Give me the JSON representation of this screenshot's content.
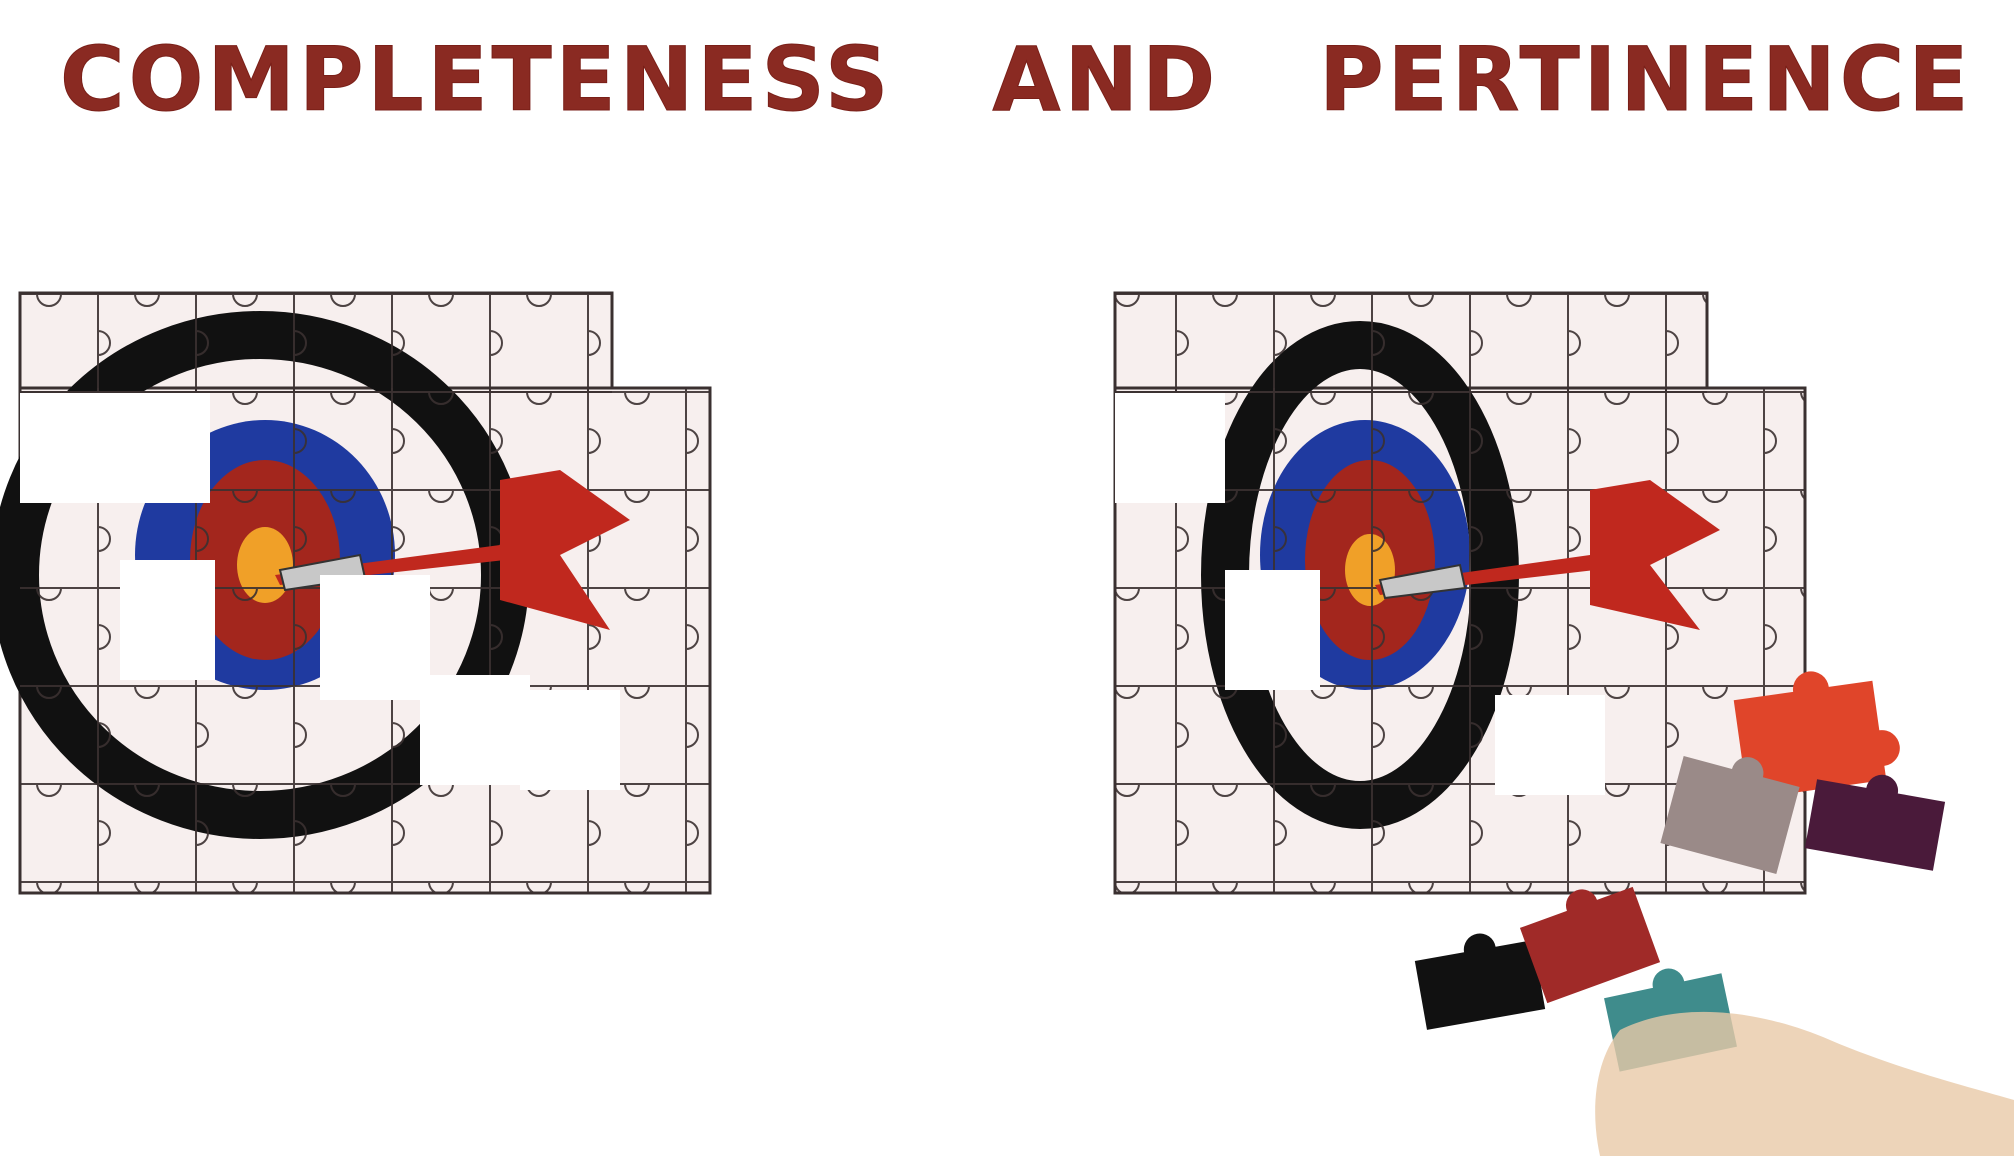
{
  "title": {
    "word_1": "COMPLETENESS",
    "word_2": "AND",
    "word_3": "PERTINENCE"
  },
  "colors": {
    "title": "#8a2a22",
    "board_bg": "#f7efee",
    "grid_line": "#3a3030",
    "ring_black": "#111111",
    "ring_blue": "#1f3aa0",
    "ring_red": "#a3261d",
    "ring_orange": "#f0a028",
    "dart_red": "#c0281e",
    "piece_orange": "#e0452a",
    "piece_purple": "#4a1a3a",
    "piece_gray": "#9a8a88",
    "piece_black": "#111111",
    "piece_maroon": "#a02a28",
    "piece_teal": "#3f8c8c",
    "hand": "#e8c9a8"
  },
  "illustrations": {
    "left_puzzle": "target-dart-puzzle-icon",
    "right_puzzle": "target-dart-puzzle-icon",
    "loose_pieces": "puzzle-pieces-icon",
    "hand": "hand-icon"
  }
}
